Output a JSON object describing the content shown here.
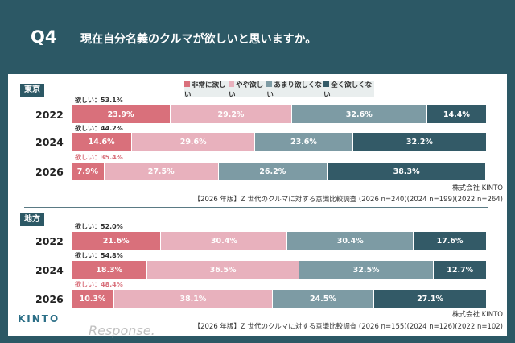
{
  "header": {
    "q": "Q4",
    "title": "現在自分名義のクルマが欲しいと思いますか。"
  },
  "legend": [
    "非常に欲しい",
    "やや欲しい",
    "あまり欲しくない",
    "全く欲しくない"
  ],
  "colors": [
    "#d9707b",
    "#e8b1bd",
    "#7d9ba4",
    "#335a67"
  ],
  "chart_data": [
    {
      "type": "bar",
      "stacked": true,
      "orientation": "horizontal",
      "region": "東京",
      "categories": [
        "2022",
        "2024",
        "2026"
      ],
      "want_label": [
        "欲しい：53.1%",
        "欲しい：44.2%",
        "欲しい：35.4%"
      ],
      "series": [
        {
          "name": "非常に欲しい",
          "values": [
            23.9,
            14.6,
            7.9
          ]
        },
        {
          "name": "やや欲しい",
          "values": [
            29.2,
            29.6,
            27.5
          ]
        },
        {
          "name": "あまり欲しくない",
          "values": [
            32.6,
            23.6,
            26.2
          ]
        },
        {
          "name": "全く欲しくない",
          "values": [
            14.4,
            32.2,
            38.3
          ]
        }
      ],
      "source": [
        "株式会社 KINTO",
        "【2026 年版】Z 世代のクルマに対する意識比較調査 (2026 n=240)(2024 n=199)(2022 n=264)"
      ]
    },
    {
      "type": "bar",
      "stacked": true,
      "orientation": "horizontal",
      "region": "地方",
      "categories": [
        "2022",
        "2024",
        "2026"
      ],
      "want_label": [
        "欲しい：52.0%",
        "欲しい：54.8%",
        "欲しい：48.4%"
      ],
      "series": [
        {
          "name": "非常に欲しい",
          "values": [
            21.6,
            18.3,
            10.3
          ]
        },
        {
          "name": "やや欲しい",
          "values": [
            30.4,
            36.5,
            38.1
          ]
        },
        {
          "name": "あまり欲しくない",
          "values": [
            30.4,
            32.5,
            24.5
          ]
        },
        {
          "name": "全く欲しくない",
          "values": [
            17.6,
            12.7,
            27.1
          ]
        }
      ],
      "source": [
        "株式会社 KINTO",
        "【2026 年版】Z 世代のクルマに対する意識比較調査 (2026 n=155)(2024 n=126)(2022 n=102)"
      ]
    }
  ],
  "logo": "KINTO",
  "watermark": "Response."
}
